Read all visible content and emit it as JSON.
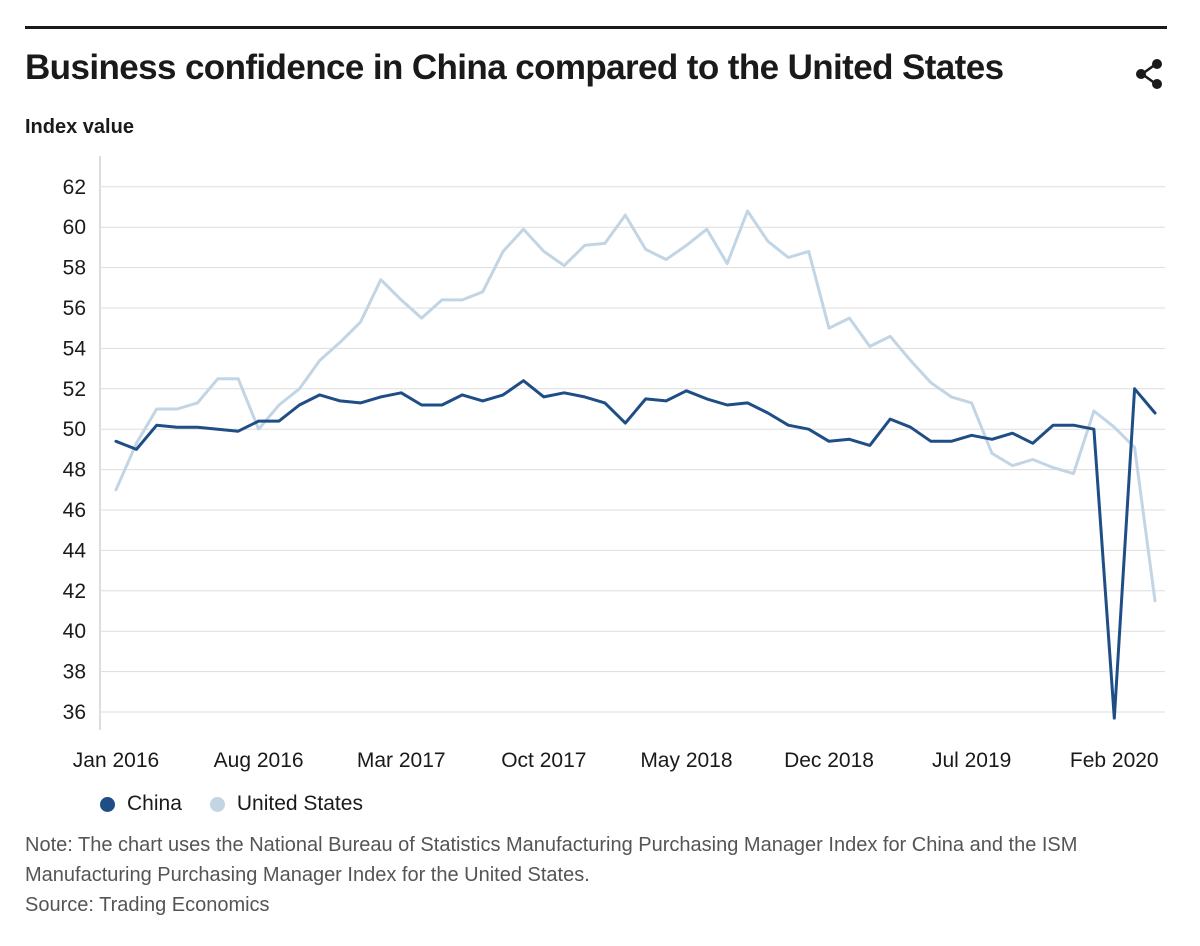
{
  "title": "Business confidence in China compared to the United States",
  "icons": {
    "share": "share-icon"
  },
  "colors": {
    "china": "#1f4e86",
    "us": "#c2d5e5",
    "grid": "#dddddd",
    "text": "#1a1a1a"
  },
  "legend": [
    {
      "label": "China",
      "color": "#1f4e86"
    },
    {
      "label": "United States",
      "color": "#c2d5e5"
    }
  ],
  "note": "Note: The chart uses the National Bureau of Statistics Manufacturing Purchasing Manager Index for China and the ISM Manufacturing Purchasing Manager Index for the United States.",
  "source": "Source: Trading Economics",
  "chart_data": {
    "type": "line",
    "title": "Business confidence in China compared to the United States",
    "ylabel": "Index value",
    "xlabel": "",
    "ylim": [
      35,
      63
    ],
    "yticks": [
      36,
      38,
      40,
      42,
      44,
      46,
      48,
      50,
      52,
      54,
      56,
      58,
      60,
      62
    ],
    "grid": true,
    "legend_position": "bottom",
    "x_tick_labels": [
      "Jan 2016",
      "Aug 2016",
      "Mar 2017",
      "Oct 2017",
      "May 2018",
      "Dec 2018",
      "Jul 2019",
      "Feb 2020"
    ],
    "x_tick_positions": [
      0,
      7,
      14,
      21,
      28,
      35,
      42,
      49
    ],
    "x": [
      "2016-01",
      "2016-02",
      "2016-03",
      "2016-04",
      "2016-05",
      "2016-06",
      "2016-07",
      "2016-08",
      "2016-09",
      "2016-10",
      "2016-11",
      "2016-12",
      "2017-01",
      "2017-02",
      "2017-03",
      "2017-04",
      "2017-05",
      "2017-06",
      "2017-07",
      "2017-08",
      "2017-09",
      "2017-10",
      "2017-11",
      "2017-12",
      "2018-01",
      "2018-02",
      "2018-03",
      "2018-04",
      "2018-05",
      "2018-06",
      "2018-07",
      "2018-08",
      "2018-09",
      "2018-10",
      "2018-11",
      "2018-12",
      "2019-01",
      "2019-02",
      "2019-03",
      "2019-04",
      "2019-05",
      "2019-06",
      "2019-07",
      "2019-08",
      "2019-09",
      "2019-10",
      "2019-11",
      "2019-12",
      "2020-01",
      "2020-02",
      "2020-03",
      "2020-04"
    ],
    "series": [
      {
        "name": "China",
        "color": "#1f4e86",
        "values": [
          49.4,
          49.0,
          50.2,
          50.1,
          50.1,
          50.0,
          49.9,
          50.4,
          50.4,
          51.2,
          51.7,
          51.4,
          51.3,
          51.6,
          51.8,
          51.2,
          51.2,
          51.7,
          51.4,
          51.7,
          52.4,
          51.6,
          51.8,
          51.6,
          51.3,
          50.3,
          51.5,
          51.4,
          51.9,
          51.5,
          51.2,
          51.3,
          50.8,
          50.2,
          50.0,
          49.4,
          49.5,
          49.2,
          50.5,
          50.1,
          49.4,
          49.4,
          49.7,
          49.5,
          49.8,
          49.3,
          50.2,
          50.2,
          50.0,
          35.7,
          52.0,
          50.8
        ]
      },
      {
        "name": "United States",
        "color": "#c2d5e5",
        "values": [
          47.0,
          49.3,
          51.0,
          51.0,
          51.3,
          52.5,
          52.5,
          50.0,
          51.2,
          52.0,
          53.4,
          54.3,
          55.3,
          57.4,
          56.4,
          55.5,
          56.4,
          56.4,
          56.8,
          58.8,
          59.9,
          58.8,
          58.1,
          59.1,
          59.2,
          60.6,
          58.9,
          58.4,
          59.1,
          59.9,
          58.2,
          60.8,
          59.3,
          58.5,
          58.8,
          55.0,
          55.5,
          54.1,
          54.6,
          53.4,
          52.3,
          51.6,
          51.3,
          48.8,
          48.2,
          48.5,
          48.1,
          47.8,
          50.9,
          50.1,
          49.1,
          41.5
        ]
      }
    ]
  }
}
